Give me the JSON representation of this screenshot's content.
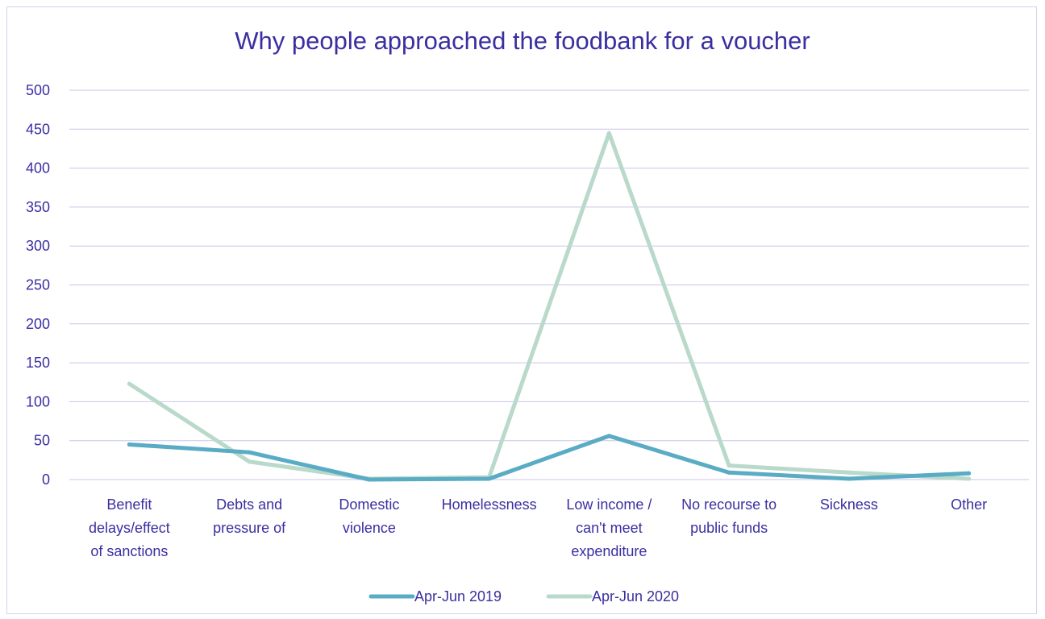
{
  "chart_data": {
    "type": "line",
    "title": "Why people approached the foodbank for a voucher",
    "categories": [
      [
        "Benefit",
        "delays/effect",
        "of sanctions"
      ],
      [
        "Debts and",
        "pressure of"
      ],
      [
        "Domestic",
        "violence"
      ],
      [
        "Homelessness"
      ],
      [
        "Low income /",
        "can't meet",
        "expenditure"
      ],
      [
        "No recourse to",
        "public funds"
      ],
      [
        "Sickness"
      ],
      [
        "Other"
      ]
    ],
    "series": [
      {
        "name": "Apr-Jun 2019",
        "color": "#5aabc4",
        "values": [
          45,
          35,
          0,
          1,
          56,
          9,
          1,
          8
        ]
      },
      {
        "name": "Apr-Jun 2020",
        "color": "#b9d9cb",
        "values": [
          123,
          23,
          1,
          3,
          445,
          18,
          9,
          1
        ]
      }
    ],
    "ylim": [
      0,
      500
    ],
    "yticks": [
      0,
      50,
      100,
      150,
      200,
      250,
      300,
      350,
      400,
      450,
      500
    ],
    "grid": true,
    "legend_position": "bottom",
    "colors": {
      "text": "#3a2fa0",
      "grid": "#c9c5ea"
    }
  }
}
